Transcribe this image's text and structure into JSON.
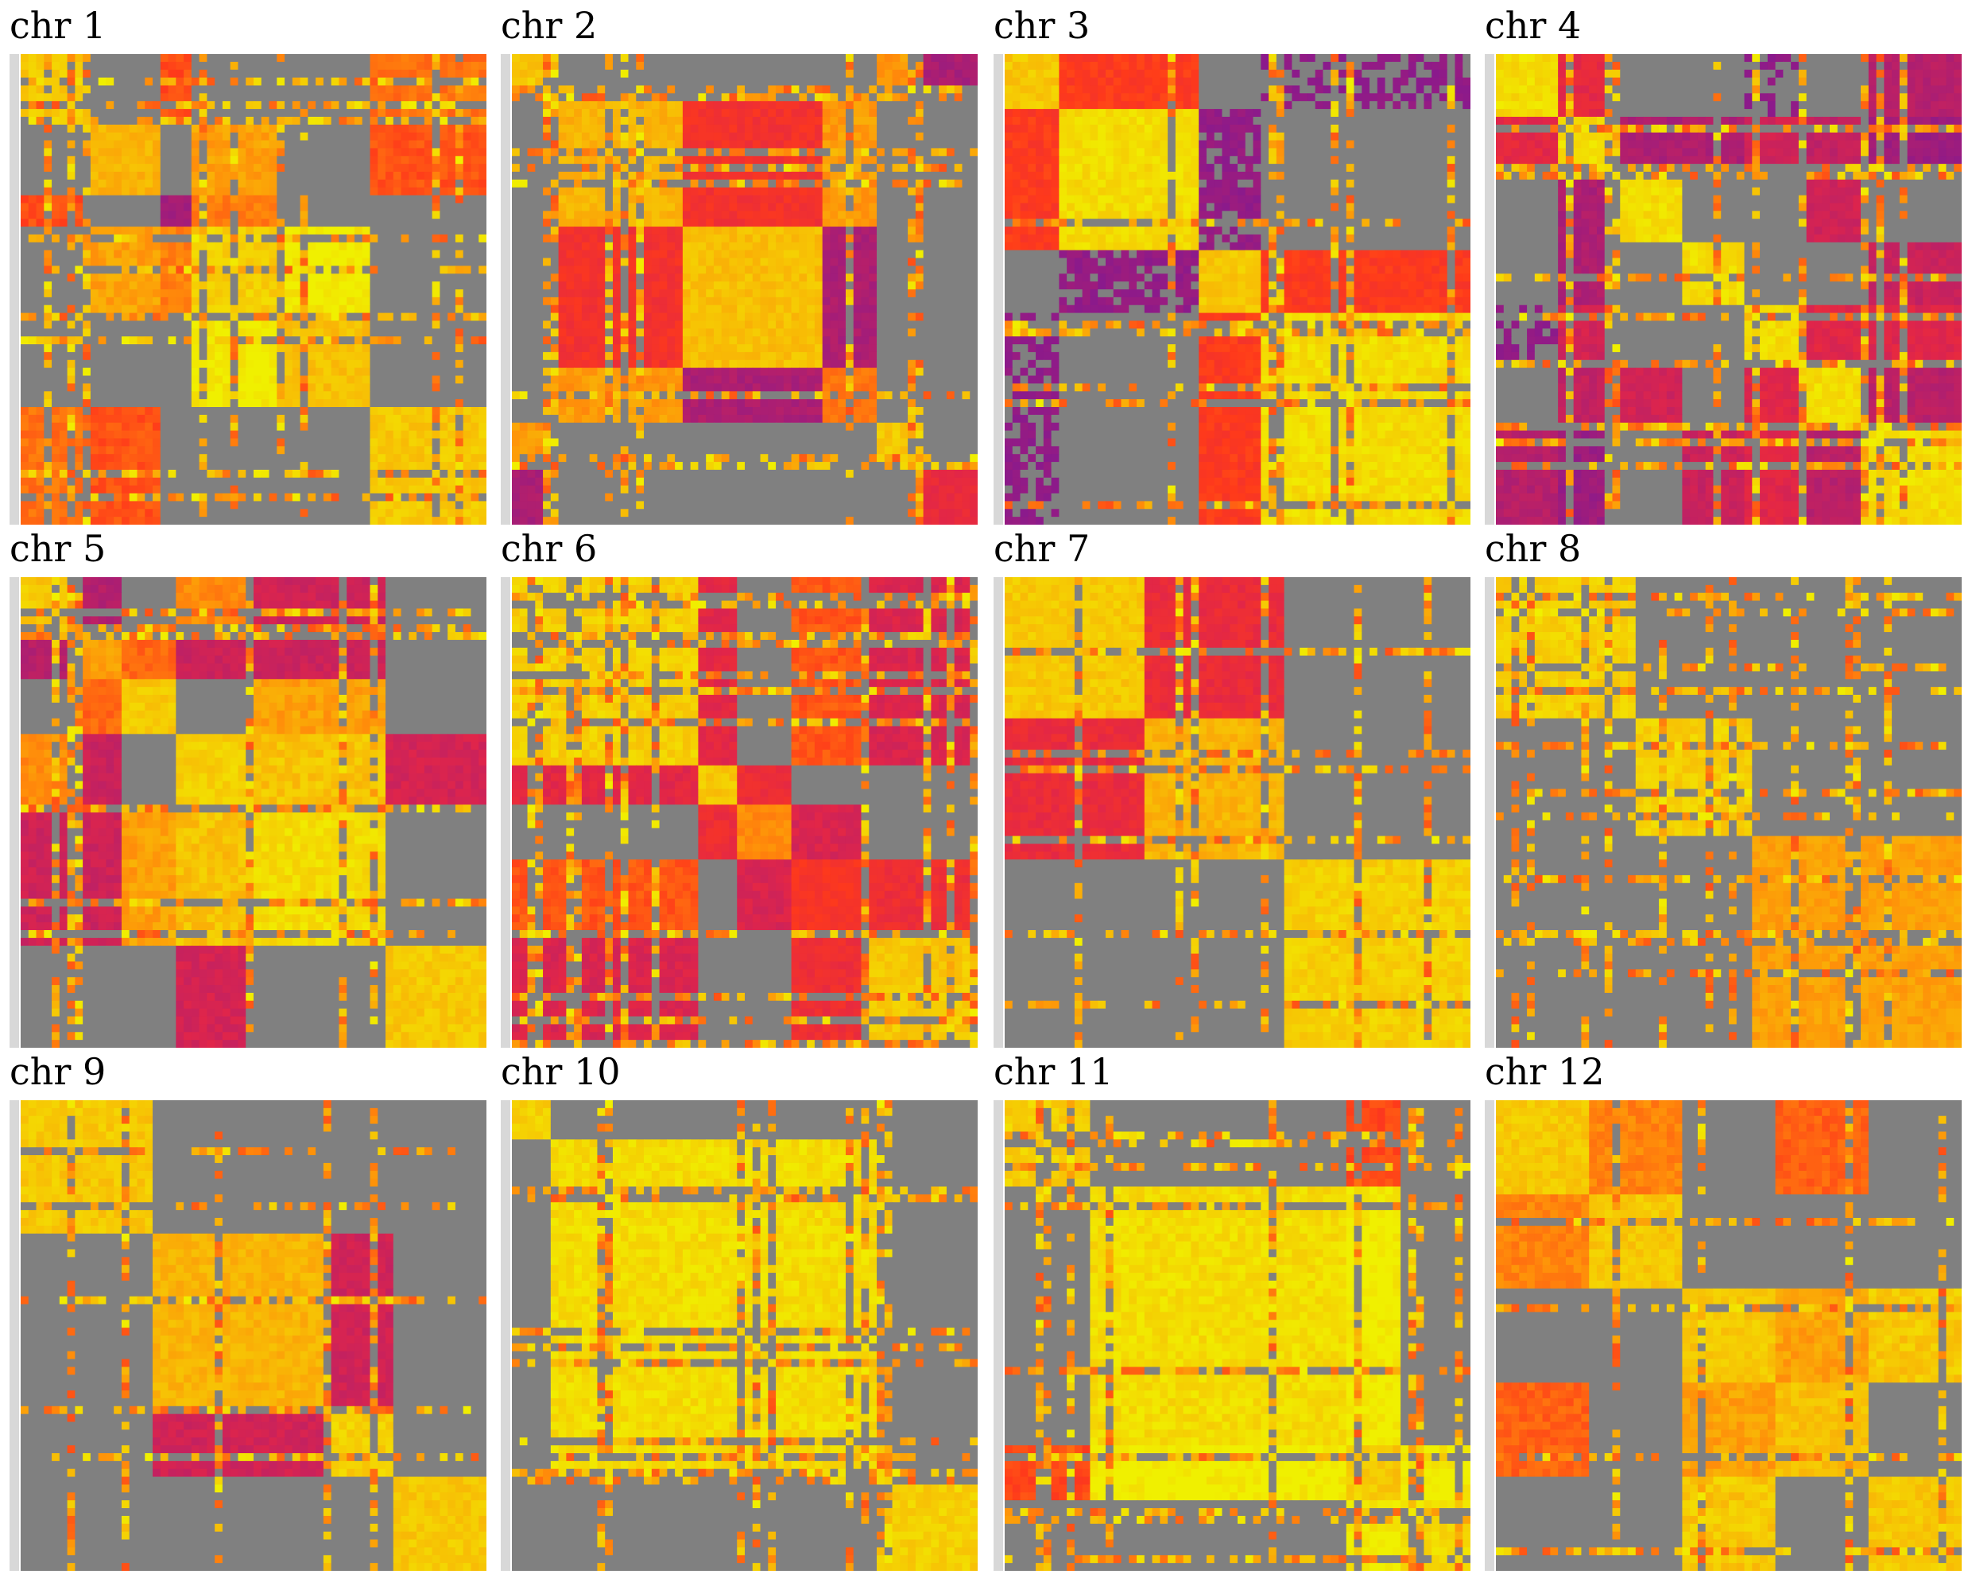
{
  "figure": {
    "background": "#ffffff",
    "colors": {
      "missing": "#808080",
      "low": "#8a1a8c",
      "mid_low": "#e0254a",
      "mid": "#ff3a1a",
      "mid_high": "#ff8c0a",
      "high": "#f0f000"
    }
  },
  "chart_data": [
    {
      "type": "heatmap",
      "title": "chr 1",
      "seed": 11,
      "blocks": [
        0.15,
        0.15,
        0.07,
        0.18,
        0.2,
        0.25
      ],
      "levels": [
        0.9,
        0.85,
        0.1,
        0.92,
        0.88,
        0.9
      ],
      "off": [
        0.8,
        0.75,
        0.7,
        0.85
      ]
    },
    {
      "type": "heatmap",
      "title": "chr 2",
      "seed": 22,
      "blocks": [
        0.06,
        0.3,
        0.3,
        0.12,
        0.1,
        0.12
      ],
      "levels": [
        0.9,
        0.85,
        0.88,
        0.7,
        0.9,
        0.4
      ],
      "off": [
        0.75,
        0.2,
        0.05,
        0.55
      ]
    },
    {
      "type": "heatmap",
      "title": "chr 3",
      "seed": 33,
      "blocks": [
        0.12,
        0.3,
        0.14,
        0.44
      ],
      "levels": [
        0.9,
        0.95,
        0.9,
        0.95
      ],
      "off": [
        0.1,
        0.6,
        0.3,
        0.1
      ]
    },
    {
      "type": "heatmap",
      "title": "chr 4",
      "seed": 44,
      "blocks": [
        0.14,
        0.14,
        0.14,
        0.14,
        0.14,
        0.14,
        0.16
      ],
      "levels": [
        0.95,
        0.95,
        0.95,
        0.95,
        0.95,
        0.95,
        0.95
      ],
      "off": [
        0.05,
        0.4,
        0.25,
        0.15
      ]
    },
    {
      "type": "heatmap",
      "title": "chr 5",
      "seed": 55,
      "blocks": [
        0.1,
        0.12,
        0.12,
        0.16,
        0.28,
        0.22
      ],
      "levels": [
        0.9,
        0.8,
        0.9,
        0.92,
        0.95,
        0.9
      ],
      "off": [
        0.35,
        0.15,
        0.85,
        0.8
      ]
    },
    {
      "type": "heatmap",
      "title": "chr 6",
      "seed": 66,
      "blocks": [
        0.4,
        0.08,
        0.12,
        0.15,
        0.25
      ],
      "levels": [
        0.92,
        0.9,
        0.75,
        0.5,
        0.9
      ],
      "off": [
        0.4,
        0.3,
        0.2,
        0.5
      ]
    },
    {
      "type": "heatmap",
      "title": "chr 7",
      "seed": 77,
      "blocks": [
        0.3,
        0.3,
        0.4
      ],
      "levels": [
        0.9,
        0.85,
        0.92
      ],
      "off": [
        0.6,
        0.3,
        0.35
      ]
    },
    {
      "type": "heatmap",
      "title": "chr 8",
      "seed": 88,
      "blocks": [
        0.3,
        0.25,
        0.45
      ],
      "levels": [
        0.92,
        0.92,
        0.8
      ],
      "off": [
        0.05,
        0.65,
        0.1
      ]
    },
    {
      "type": "heatmap",
      "title": "chr 9",
      "seed": 99,
      "blocks": [
        0.28,
        0.38,
        0.14,
        0.2
      ],
      "levels": [
        0.9,
        0.85,
        0.92,
        0.9
      ],
      "off": [
        0.05,
        0.2,
        0.5,
        0.25
      ]
    },
    {
      "type": "heatmap",
      "title": "chr 10",
      "seed": 110,
      "blocks": [
        0.08,
        0.72,
        0.2
      ],
      "levels": [
        0.92,
        0.95,
        0.92
      ],
      "off": [
        0.85,
        0.8,
        0.9
      ]
    },
    {
      "type": "heatmap",
      "title": "chr 11",
      "seed": 121,
      "blocks": [
        0.18,
        0.55,
        0.12,
        0.15
      ],
      "levels": [
        0.92,
        0.95,
        0.9,
        0.95
      ],
      "off": [
        0.85,
        0.9,
        0.7,
        0.9
      ]
    },
    {
      "type": "heatmap",
      "title": "chr 12",
      "seed": 132,
      "blocks": [
        0.2,
        0.2,
        0.2,
        0.2,
        0.2
      ],
      "levels": [
        0.9,
        0.9,
        0.9,
        0.88,
        0.9
      ],
      "off": [
        0.75,
        0.7,
        0.8,
        0.7
      ]
    }
  ]
}
